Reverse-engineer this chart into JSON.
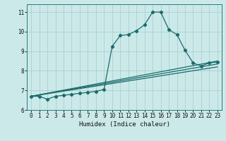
{
  "xlabel": "Humidex (Indice chaleur)",
  "bg_color": "#cce9e9",
  "line_color": "#1a6b6b",
  "grid_color": "#aacfcf",
  "xlim": [
    -0.5,
    23.5
  ],
  "ylim": [
    6.0,
    11.4
  ],
  "xticks": [
    0,
    1,
    2,
    3,
    4,
    5,
    6,
    7,
    8,
    9,
    10,
    11,
    12,
    13,
    14,
    15,
    16,
    17,
    18,
    19,
    20,
    21,
    22,
    23
  ],
  "yticks": [
    6,
    7,
    8,
    9,
    10,
    11
  ],
  "line1_x": [
    0,
    1,
    2,
    3,
    4,
    5,
    6,
    7,
    8,
    9,
    10,
    11,
    12,
    13,
    14,
    15,
    16,
    17,
    18,
    19,
    20,
    21,
    22,
    23
  ],
  "line1_y": [
    6.7,
    6.7,
    6.55,
    6.7,
    6.75,
    6.8,
    6.85,
    6.9,
    6.95,
    7.05,
    9.25,
    9.8,
    9.85,
    10.05,
    10.35,
    11.0,
    11.0,
    10.1,
    9.85,
    9.05,
    8.4,
    8.25,
    8.4,
    8.45
  ],
  "line2_x": [
    0,
    23
  ],
  "line2_y": [
    6.7,
    8.5
  ],
  "line3_x": [
    0,
    23
  ],
  "line3_y": [
    6.7,
    8.35
  ],
  "line4_x": [
    0,
    23
  ],
  "line4_y": [
    6.7,
    8.2
  ]
}
